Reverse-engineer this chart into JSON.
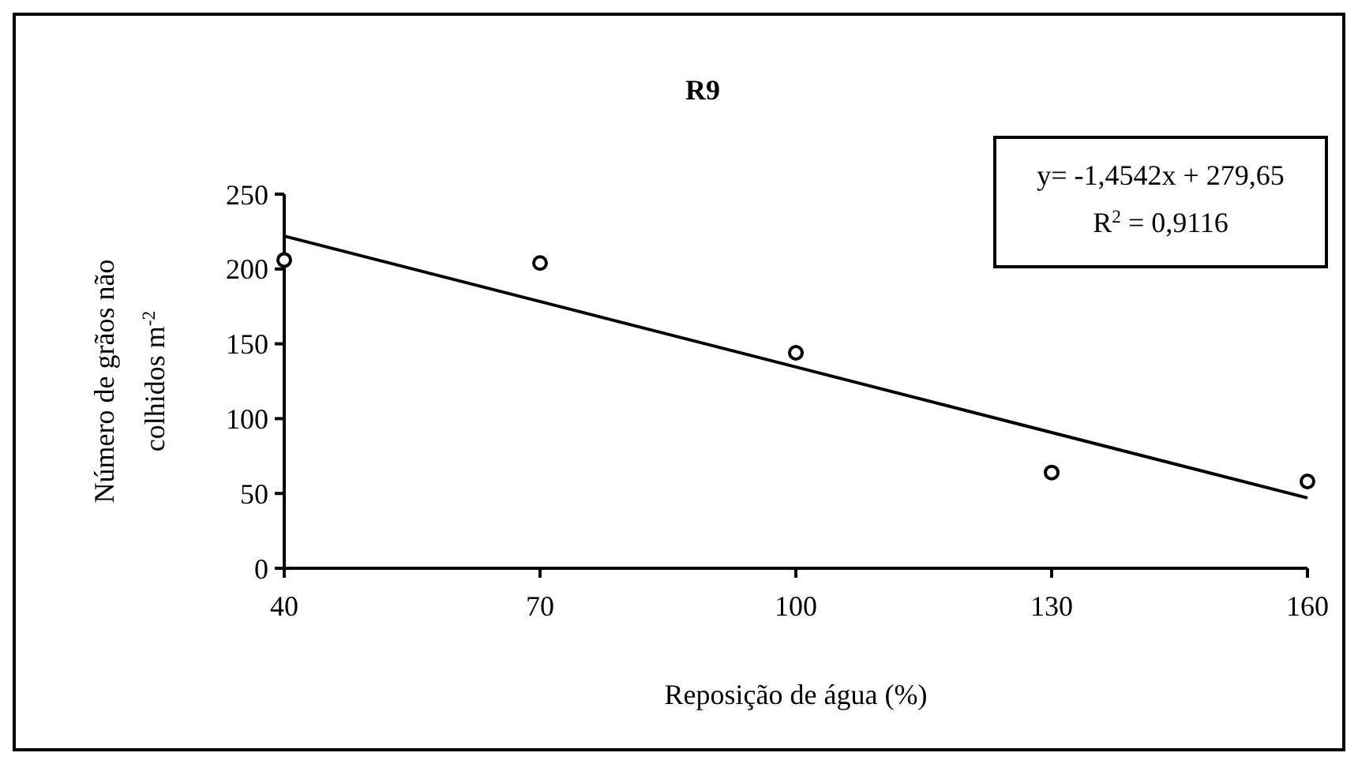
{
  "chart_data": {
    "type": "scatter",
    "title": "R9",
    "xlabel": "Reposição de água (%)",
    "ylabel": "Número de grãos não colhidos m$^{-2}$",
    "x": [
      40,
      70,
      100,
      130,
      160
    ],
    "series": [
      {
        "color": "#000000",
        "values": [
          206,
          204,
          144,
          64,
          58
        ],
        "marker": "circle"
      },
      {
        "type": "line",
        "color": "#000000",
        "x": [
          40,
          160
        ],
        "values": [
          222,
          47
        ],
        "marker": "none"
      }
    ],
    "xlim": [
      40,
      160
    ],
    "xticks": [
      40,
      70,
      100,
      130,
      160
    ],
    "ylim": [
      0,
      250
    ],
    "yticks": [
      0,
      50,
      100,
      150,
      200,
      250
    ],
    "annotations": [
      "y= -1,4542x + 279,65",
      "R$^{2}$ = 0,9116"
    ],
    "grid": false
  }
}
